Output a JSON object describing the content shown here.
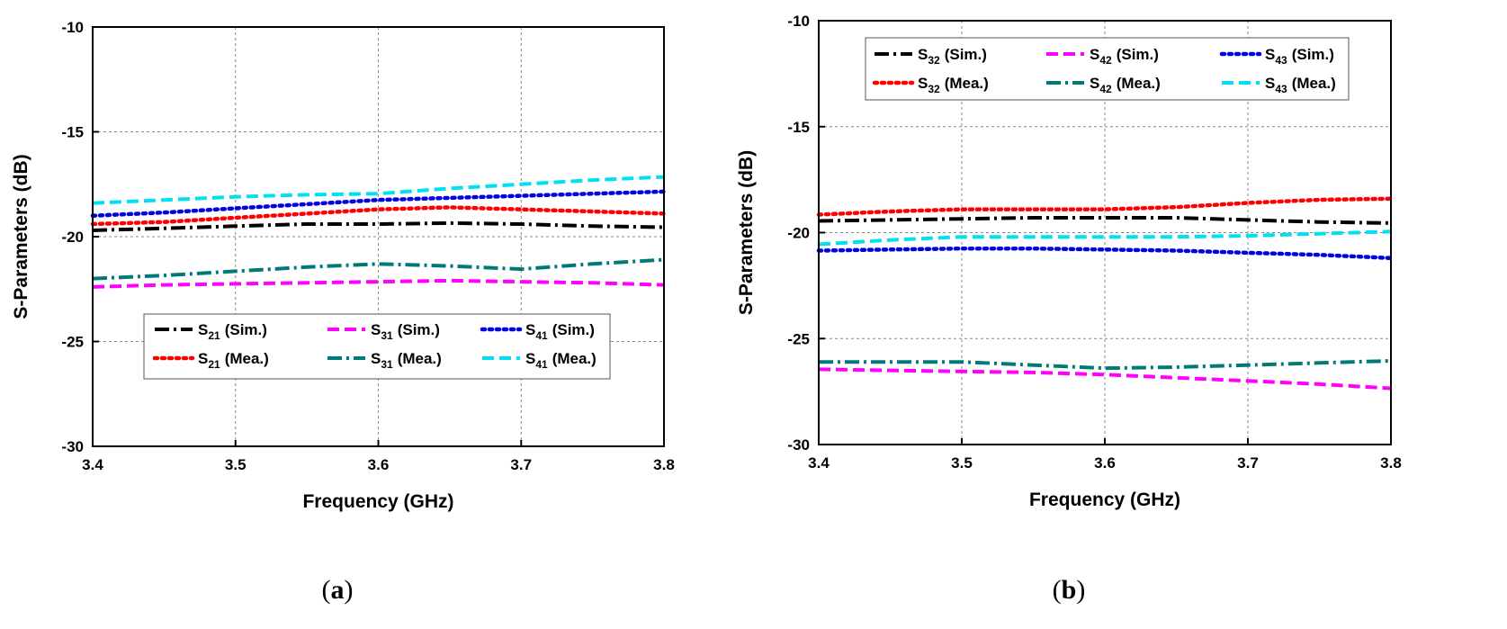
{
  "chart_data": [
    {
      "type": "line",
      "panel_label": "a",
      "xlabel": "Frequency (GHz)",
      "ylabel": "S-Parameters (dB)",
      "xlim": [
        3.4,
        3.8
      ],
      "ylim": [
        -30,
        -10
      ],
      "xticks": [
        3.4,
        3.5,
        3.6,
        3.7,
        3.8
      ],
      "yticks": [
        -30,
        -25,
        -20,
        -15,
        -10
      ],
      "xtick_labels": [
        "3.4",
        "3.5",
        "3.6",
        "3.7",
        "3.8"
      ],
      "ytick_labels": [
        "-30",
        "-25",
        "-20",
        "-15",
        "-10"
      ],
      "grid": true,
      "legend_position": "lower-center",
      "series": [
        {
          "name": "S21 (Sim.)",
          "sub_main": "S",
          "sub_index": "21",
          "sub_suffix": "(Sim.)",
          "color": "#000000",
          "style": "dashdot",
          "x": [
            3.4,
            3.45,
            3.5,
            3.55,
            3.6,
            3.65,
            3.7,
            3.75,
            3.8
          ],
          "y": [
            -19.7,
            -19.6,
            -19.5,
            -19.4,
            -19.4,
            -19.35,
            -19.4,
            -19.5,
            -19.55
          ]
        },
        {
          "name": "S21 (Mea.)",
          "sub_main": "S",
          "sub_index": "21",
          "sub_suffix": "(Mea.)",
          "color": "#ff0000",
          "style": "dot",
          "x": [
            3.4,
            3.45,
            3.5,
            3.55,
            3.6,
            3.65,
            3.7,
            3.75,
            3.8
          ],
          "y": [
            -19.4,
            -19.3,
            -19.1,
            -18.9,
            -18.7,
            -18.6,
            -18.7,
            -18.8,
            -18.9
          ]
        },
        {
          "name": "S31 (Sim.)",
          "sub_main": "S",
          "sub_index": "31",
          "sub_suffix": "(Sim.)",
          "color": "#ff00ff",
          "style": "dash",
          "x": [
            3.4,
            3.45,
            3.5,
            3.55,
            3.6,
            3.65,
            3.7,
            3.75,
            3.8
          ],
          "y": [
            -22.4,
            -22.3,
            -22.25,
            -22.2,
            -22.15,
            -22.1,
            -22.15,
            -22.2,
            -22.3
          ]
        },
        {
          "name": "S31 (Mea.)",
          "sub_main": "S",
          "sub_index": "31",
          "sub_suffix": "(Mea.)",
          "color": "#007a78",
          "style": "dashdot",
          "x": [
            3.4,
            3.45,
            3.5,
            3.55,
            3.6,
            3.65,
            3.7,
            3.75,
            3.8
          ],
          "y": [
            -22.0,
            -21.85,
            -21.65,
            -21.45,
            -21.3,
            -21.4,
            -21.55,
            -21.3,
            -21.1
          ]
        },
        {
          "name": "S41 (Sim.)",
          "sub_main": "S",
          "sub_index": "41",
          "sub_suffix": "(Sim.)",
          "color": "#0000e0",
          "style": "dot",
          "x": [
            3.4,
            3.45,
            3.5,
            3.55,
            3.6,
            3.65,
            3.7,
            3.75,
            3.8
          ],
          "y": [
            -19.0,
            -18.85,
            -18.65,
            -18.45,
            -18.25,
            -18.15,
            -18.05,
            -17.95,
            -17.85
          ]
        },
        {
          "name": "S41 (Mea.)",
          "sub_main": "S",
          "sub_index": "41",
          "sub_suffix": "(Mea.)",
          "color": "#00e0f0",
          "style": "dash",
          "x": [
            3.4,
            3.45,
            3.5,
            3.55,
            3.6,
            3.65,
            3.7,
            3.75,
            3.8
          ],
          "y": [
            -18.4,
            -18.25,
            -18.1,
            -18.0,
            -17.95,
            -17.7,
            -17.5,
            -17.3,
            -17.15
          ]
        }
      ]
    },
    {
      "type": "line",
      "panel_label": "b",
      "xlabel": "Frequency (GHz)",
      "ylabel": "S-Parameters (dB)",
      "xlim": [
        3.4,
        3.8
      ],
      "ylim": [
        -30,
        -10
      ],
      "xticks": [
        3.4,
        3.5,
        3.6,
        3.7,
        3.8
      ],
      "yticks": [
        -30,
        -25,
        -20,
        -15,
        -10
      ],
      "xtick_labels": [
        "3.4",
        "3.5",
        "3.6",
        "3.7",
        "3.8"
      ],
      "ytick_labels": [
        "-30",
        "-25",
        "-20",
        "-15",
        "-10"
      ],
      "grid": true,
      "legend_position": "top-center",
      "series": [
        {
          "name": "S32 (Sim.)",
          "sub_main": "S",
          "sub_index": "32",
          "sub_suffix": "(Sim.)",
          "color": "#000000",
          "style": "dashdot",
          "x": [
            3.4,
            3.45,
            3.5,
            3.55,
            3.6,
            3.65,
            3.7,
            3.75,
            3.8
          ],
          "y": [
            -19.45,
            -19.4,
            -19.35,
            -19.3,
            -19.3,
            -19.3,
            -19.4,
            -19.5,
            -19.55
          ]
        },
        {
          "name": "S32 (Mea.)",
          "sub_main": "S",
          "sub_index": "32",
          "sub_suffix": "(Mea.)",
          "color": "#ff0000",
          "style": "dot",
          "x": [
            3.4,
            3.45,
            3.5,
            3.55,
            3.6,
            3.65,
            3.7,
            3.75,
            3.8
          ],
          "y": [
            -19.15,
            -19.0,
            -18.9,
            -18.9,
            -18.9,
            -18.8,
            -18.6,
            -18.45,
            -18.4
          ]
        },
        {
          "name": "S42 (Sim.)",
          "sub_main": "S",
          "sub_index": "42",
          "sub_suffix": "(Sim.)",
          "color": "#ff00ff",
          "style": "dash",
          "x": [
            3.4,
            3.45,
            3.5,
            3.55,
            3.6,
            3.65,
            3.7,
            3.75,
            3.8
          ],
          "y": [
            -26.45,
            -26.5,
            -26.55,
            -26.6,
            -26.7,
            -26.85,
            -27.0,
            -27.15,
            -27.35
          ]
        },
        {
          "name": "S42 (Mea.)",
          "sub_main": "S",
          "sub_index": "42",
          "sub_suffix": "(Mea.)",
          "color": "#007a78",
          "style": "dashdot",
          "x": [
            3.4,
            3.45,
            3.5,
            3.55,
            3.6,
            3.65,
            3.7,
            3.75,
            3.8
          ],
          "y": [
            -26.1,
            -26.1,
            -26.1,
            -26.25,
            -26.4,
            -26.35,
            -26.25,
            -26.15,
            -26.05
          ]
        },
        {
          "name": "S43 (Sim.)",
          "sub_main": "S",
          "sub_index": "43",
          "sub_suffix": "(Sim.)",
          "color": "#0000e0",
          "style": "dot",
          "x": [
            3.4,
            3.45,
            3.5,
            3.55,
            3.6,
            3.65,
            3.7,
            3.75,
            3.8
          ],
          "y": [
            -20.85,
            -20.8,
            -20.75,
            -20.75,
            -20.8,
            -20.85,
            -20.95,
            -21.05,
            -21.2
          ]
        },
        {
          "name": "S43 (Mea.)",
          "sub_main": "S",
          "sub_index": "43",
          "sub_suffix": "(Mea.)",
          "color": "#00e0f0",
          "style": "dash",
          "x": [
            3.4,
            3.45,
            3.5,
            3.55,
            3.6,
            3.65,
            3.7,
            3.75,
            3.8
          ],
          "y": [
            -20.55,
            -20.35,
            -20.2,
            -20.2,
            -20.2,
            -20.2,
            -20.15,
            -20.05,
            -19.95
          ]
        }
      ]
    }
  ]
}
